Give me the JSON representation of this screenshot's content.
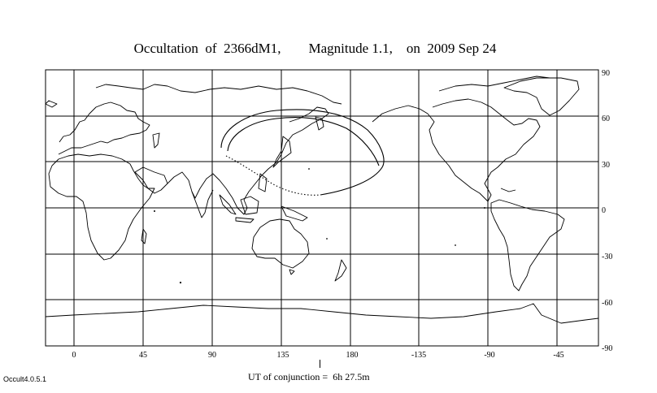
{
  "title": "Occultation  of  2366dM1,        Magnitude 1.1,    on  2009 Sep 24",
  "version": "Occult4.0.5.1",
  "ut_label": "UT of conjunction =  6h 27.5m",
  "longitude_labels": [
    "0",
    "45",
    "90",
    "135",
    "180",
    "-135",
    "-90",
    "-45"
  ],
  "latitude_labels": [
    "90",
    "60",
    "30",
    "0",
    "-30",
    "-60",
    "-90"
  ],
  "colors": {
    "ink": "#000000",
    "background": "#ffffff"
  }
}
